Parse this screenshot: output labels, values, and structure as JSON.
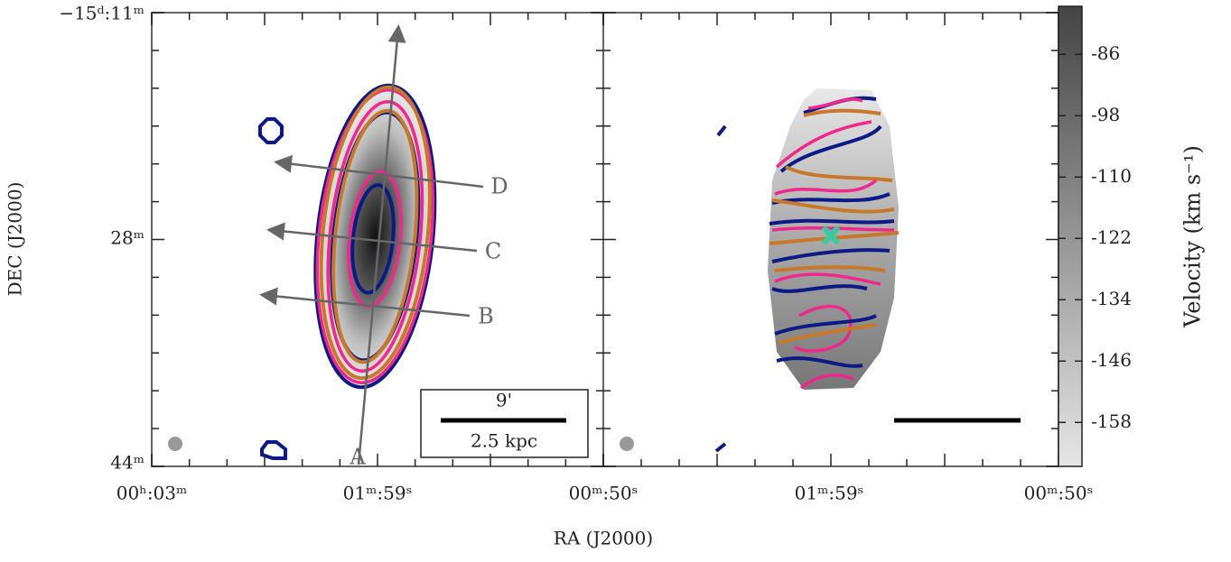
{
  "chart_data": {
    "type": "image",
    "x_label": "RA (J2000)",
    "y_label": "DEC (J2000)",
    "x_tick_labels_left": [
      "00ʰ:03ᵐ",
      "01ᵐ:59ˢ",
      "00ᵐ:50ˢ"
    ],
    "x_tick_labels_right": [
      "01ᵐ:59ˢ",
      "00ᵐ:50ˢ"
    ],
    "y_tick_labels": [
      "−15ᵈ:11ᵐ",
      "28ᵐ",
      "44ᵐ"
    ],
    "annotations": [
      "A",
      "B",
      "C",
      "D"
    ],
    "scale_bar": [
      "9'",
      "2.5 kpc"
    ],
    "colorbar": {
      "label": "Velocity (km s⁻¹)",
      "lim": [
        -166.6,
        -76.6
      ],
      "ticks": [
        -86,
        -98,
        -110,
        -122,
        -134,
        -146,
        -158
      ]
    }
  }
}
